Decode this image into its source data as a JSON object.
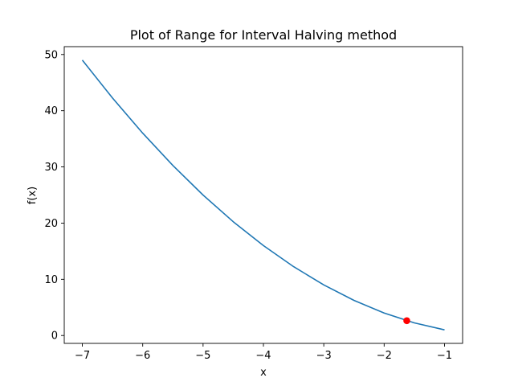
{
  "chart_data": {
    "type": "line",
    "title": "Plot of Range for Interval Halving method",
    "xlabel": "x",
    "ylabel": "f(x)",
    "xlim": [
      -7.3,
      -0.7
    ],
    "ylim": [
      -1.4,
      51.4
    ],
    "xticks": [
      -7,
      -6,
      -5,
      -4,
      -3,
      -2,
      -1
    ],
    "xtick_labels": [
      "−7",
      "−6",
      "−5",
      "−4",
      "−3",
      "−2",
      "−1"
    ],
    "yticks": [
      0,
      10,
      20,
      30,
      40,
      50
    ],
    "ytick_labels": [
      "0",
      "10",
      "20",
      "30",
      "40",
      "50"
    ],
    "grid": false,
    "series": [
      {
        "x": [
          -7,
          -6.5,
          -6,
          -5.5,
          -5,
          -4.5,
          -4,
          -3.5,
          -3,
          -2.5,
          -2,
          -1.5,
          -1
        ],
        "y": [
          49,
          42.25,
          36,
          30.25,
          25,
          20.25,
          16,
          12.25,
          9,
          6.25,
          4,
          2.25,
          1
        ],
        "color": "#1f77b4"
      }
    ],
    "points": [
      {
        "x": -1.625,
        "y": 2.64,
        "color": "#ff0000"
      }
    ]
  }
}
